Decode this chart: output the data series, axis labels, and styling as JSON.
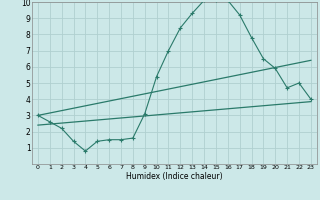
{
  "line1_x": [
    0,
    1,
    2,
    3,
    4,
    5,
    6,
    7,
    8,
    9,
    10,
    11,
    12,
    13,
    14,
    15,
    16,
    17,
    18,
    19,
    20,
    21,
    22,
    23
  ],
  "line1_y": [
    3.0,
    2.6,
    2.2,
    1.4,
    0.8,
    1.4,
    1.5,
    1.5,
    1.6,
    3.1,
    5.4,
    7.0,
    8.4,
    9.3,
    10.1,
    10.1,
    10.1,
    9.2,
    7.8,
    6.5,
    5.9,
    4.7,
    5.0,
    4.0
  ],
  "line2_x": [
    0,
    23
  ],
  "line2_y": [
    3.0,
    6.4
  ],
  "line3_x": [
    0,
    23
  ],
  "line3_y": [
    2.4,
    3.85
  ],
  "color": "#2a7a6a",
  "bg_color": "#cce8e8",
  "grid_color": "#b0d0d0",
  "xlabel": "Humidex (Indice chaleur)",
  "xlim": [
    -0.5,
    23.5
  ],
  "ylim": [
    0,
    10
  ],
  "yticks": [
    1,
    2,
    3,
    4,
    5,
    6,
    7,
    8,
    9,
    10
  ],
  "xticks": [
    0,
    1,
    2,
    3,
    4,
    5,
    6,
    7,
    8,
    9,
    10,
    11,
    12,
    13,
    14,
    15,
    16,
    17,
    18,
    19,
    20,
    21,
    22,
    23
  ],
  "marker": "+"
}
